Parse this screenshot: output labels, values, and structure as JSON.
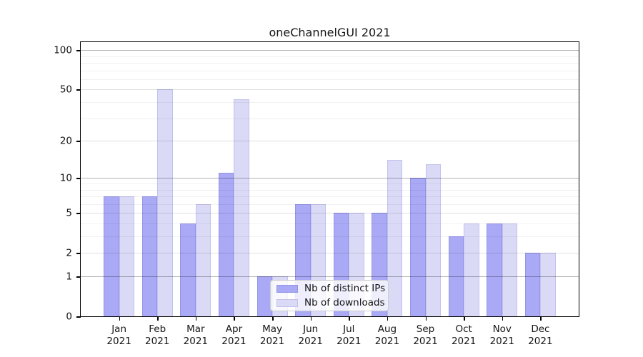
{
  "chart_data": {
    "type": "bar",
    "title": "oneChannelGUI 2021",
    "months": [
      "Jan",
      "Feb",
      "Mar",
      "Apr",
      "May",
      "Jun",
      "Jul",
      "Aug",
      "Sep",
      "Oct",
      "Nov",
      "Dec"
    ],
    "year_label": "2021",
    "categories": [
      "Jan 2021",
      "Feb 2021",
      "Mar 2021",
      "Apr 2021",
      "May 2021",
      "Jun 2021",
      "Jul 2021",
      "Aug 2021",
      "Sep 2021",
      "Oct 2021",
      "Nov 2021",
      "Dec 2021"
    ],
    "series": [
      {
        "name": "Nb of distinct IPs",
        "color": "#a9a9f5",
        "edge_color": "rgba(110,110,205,0.35)",
        "values": [
          7,
          7,
          4,
          11,
          1,
          6,
          5,
          5,
          10,
          3,
          4,
          2
        ]
      },
      {
        "name": "Nb of downloads",
        "color": "#dadaf7",
        "edge_color": "rgba(150,150,220,0.35)",
        "values": [
          7,
          50,
          6,
          42,
          1,
          6,
          5,
          14,
          13,
          4,
          4,
          2
        ]
      }
    ],
    "y_axis": {
      "scale": "log1p",
      "tick_labels": [
        0,
        1,
        2,
        5,
        10,
        20,
        50,
        100
      ],
      "major_gridlines": [
        1,
        10,
        100
      ],
      "minor_gridlines": [
        3,
        4,
        6,
        7,
        8,
        9,
        30,
        40,
        60,
        70,
        80,
        90
      ],
      "range": [
        0,
        100
      ]
    },
    "legend": {
      "position": "lower center"
    },
    "colors": {
      "background": "#ffffff",
      "axis": "#000000",
      "text": "#151515",
      "major_grid": "rgba(0,0,0,0.30)",
      "labeled_grid": "rgba(0,0,0,0.12)",
      "minor_grid": "rgba(0,0,0,0.055)"
    }
  }
}
